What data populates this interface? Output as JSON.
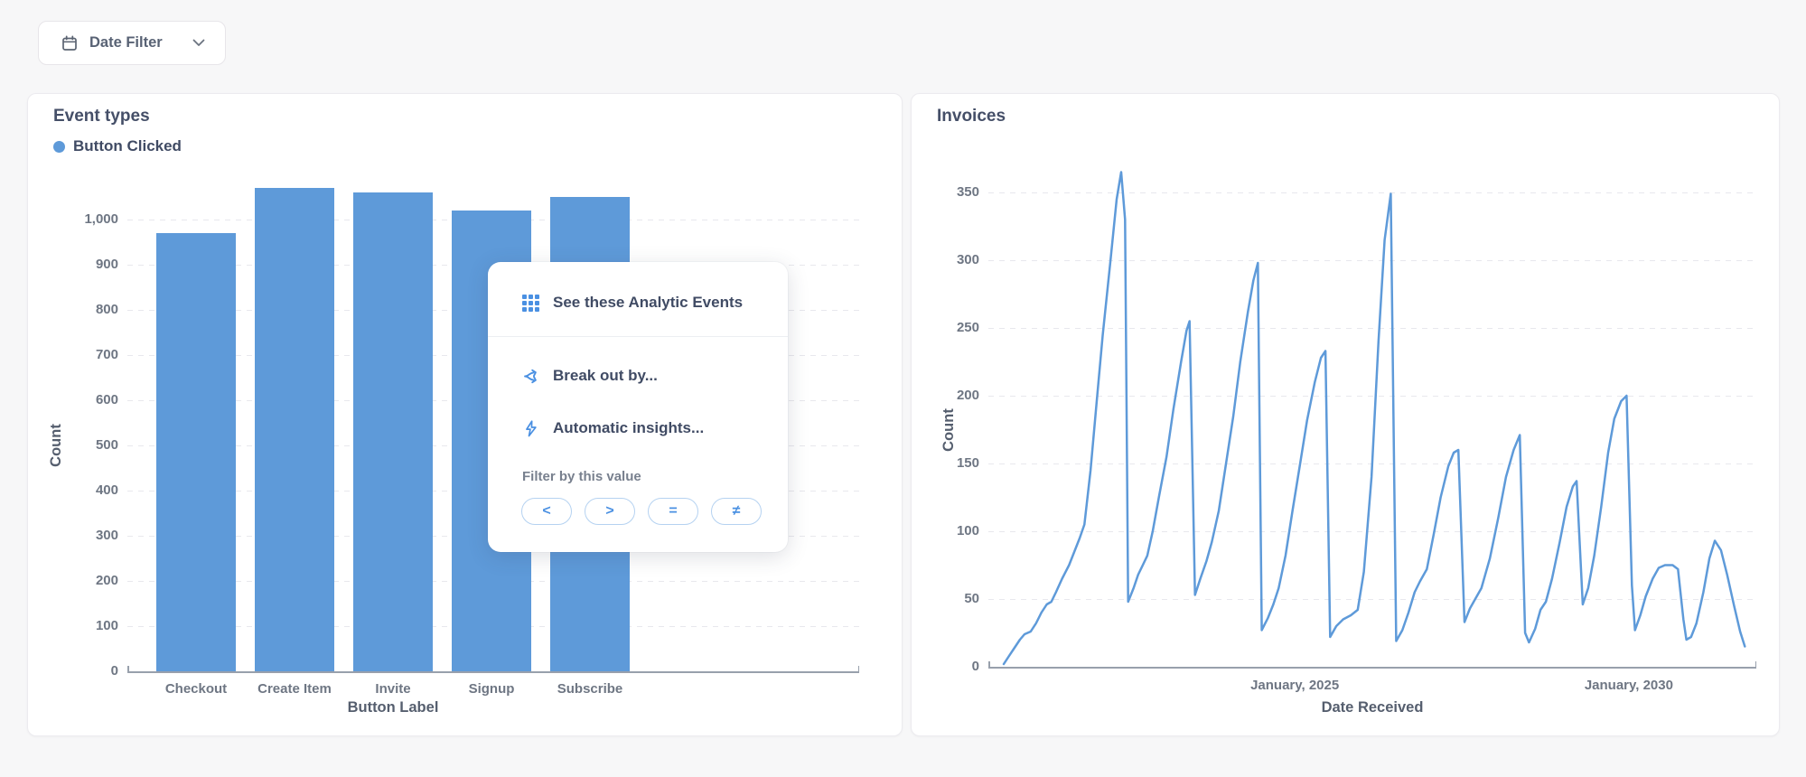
{
  "colors": {
    "accent_blue": "#5E9AD9",
    "icon_blue": "#4A90E2",
    "title_text": "#454F68",
    "tick_text": "#6E7683",
    "page_bg": "#F7F7F8",
    "card_bg": "#FFFFFF",
    "grid_line": "#E8E8ED",
    "axis_line": "#98A0AC"
  },
  "toolbar": {
    "date_filter": {
      "label": "Date Filter",
      "icon": "calendar-icon",
      "chevron": "chevron-down-icon"
    }
  },
  "context_menu": {
    "items": [
      {
        "icon": "grid-icon",
        "label": "See these Analytic Events"
      },
      {
        "icon": "breakout-icon",
        "label": "Break out by..."
      },
      {
        "icon": "lightning-icon",
        "label": "Automatic insights..."
      }
    ],
    "filter_section": {
      "label": "Filter by this value",
      "operators": [
        "<",
        ">",
        "=",
        "≠"
      ]
    }
  },
  "chart_data": [
    {
      "type": "bar",
      "title": "Event types",
      "legend": [
        {
          "label": "Button Clicked",
          "color": "#5E9AD9"
        }
      ],
      "legend_position": "top-left",
      "categories": [
        "Checkout",
        "Create Item",
        "Invite",
        "Signup",
        "Subscribe"
      ],
      "values": [
        970,
        1070,
        1060,
        1020,
        1050
      ],
      "series_name": "Button Clicked",
      "xlabel": "Button Label",
      "ylabel": "Count",
      "ylim": [
        0,
        1075
      ],
      "y_tick_values": [
        0,
        100,
        200,
        300,
        400,
        500,
        600,
        700,
        800,
        900,
        1000
      ],
      "y_tick_labels": [
        "0",
        "100",
        "200",
        "300",
        "400",
        "500",
        "600",
        "700",
        "800",
        "900",
        "1,000"
      ],
      "grid": "horizontal-dashed",
      "bar_color": "#5E9AD9"
    },
    {
      "type": "line",
      "title": "Invoices",
      "xlabel": "Date Received",
      "ylabel": "Count",
      "ylim": [
        0,
        395
      ],
      "y_tick_values": [
        0,
        50,
        100,
        150,
        200,
        250,
        300,
        350
      ],
      "y_tick_labels": [
        "0",
        "50",
        "100",
        "150",
        "200",
        "250",
        "300",
        "350"
      ],
      "grid": "horizontal-dashed",
      "line_color": "#5E9AD9",
      "x_ticks": [
        {
          "label": "January, 2025",
          "pos": 0.399
        },
        {
          "label": "January, 2030",
          "pos": 0.834
        }
      ],
      "points": [
        [
          0.02,
          2
        ],
        [
          0.027,
          8
        ],
        [
          0.034,
          14
        ],
        [
          0.041,
          20
        ],
        [
          0.047,
          24
        ],
        [
          0.055,
          26
        ],
        [
          0.062,
          32
        ],
        [
          0.069,
          40
        ],
        [
          0.076,
          46
        ],
        [
          0.082,
          48
        ],
        [
          0.088,
          55
        ],
        [
          0.096,
          65
        ],
        [
          0.105,
          75
        ],
        [
          0.112,
          85
        ],
        [
          0.119,
          95
        ],
        [
          0.125,
          105
        ],
        [
          0.133,
          145
        ],
        [
          0.141,
          195
        ],
        [
          0.149,
          245
        ],
        [
          0.159,
          300
        ],
        [
          0.167,
          345
        ],
        [
          0.173,
          365
        ],
        [
          0.178,
          330
        ],
        [
          0.182,
          48
        ],
        [
          0.189,
          58
        ],
        [
          0.195,
          68
        ],
        [
          0.201,
          75
        ],
        [
          0.207,
          82
        ],
        [
          0.214,
          100
        ],
        [
          0.222,
          125
        ],
        [
          0.232,
          155
        ],
        [
          0.241,
          190
        ],
        [
          0.251,
          225
        ],
        [
          0.258,
          248
        ],
        [
          0.262,
          255
        ],
        [
          0.269,
          53
        ],
        [
          0.276,
          65
        ],
        [
          0.284,
          78
        ],
        [
          0.291,
          92
        ],
        [
          0.3,
          115
        ],
        [
          0.309,
          148
        ],
        [
          0.319,
          185
        ],
        [
          0.328,
          225
        ],
        [
          0.338,
          262
        ],
        [
          0.345,
          285
        ],
        [
          0.351,
          298
        ],
        [
          0.356,
          27
        ],
        [
          0.364,
          36
        ],
        [
          0.371,
          46
        ],
        [
          0.378,
          58
        ],
        [
          0.387,
          82
        ],
        [
          0.396,
          115
        ],
        [
          0.406,
          150
        ],
        [
          0.415,
          182
        ],
        [
          0.425,
          210
        ],
        [
          0.433,
          228
        ],
        [
          0.439,
          233
        ],
        [
          0.445,
          22
        ],
        [
          0.453,
          30
        ],
        [
          0.462,
          35
        ],
        [
          0.472,
          38
        ],
        [
          0.481,
          42
        ],
        [
          0.489,
          70
        ],
        [
          0.499,
          140
        ],
        [
          0.508,
          240
        ],
        [
          0.516,
          315
        ],
        [
          0.524,
          349
        ],
        [
          0.531,
          19
        ],
        [
          0.539,
          27
        ],
        [
          0.547,
          40
        ],
        [
          0.555,
          55
        ],
        [
          0.562,
          63
        ],
        [
          0.571,
          72
        ],
        [
          0.58,
          98
        ],
        [
          0.589,
          125
        ],
        [
          0.599,
          148
        ],
        [
          0.606,
          158
        ],
        [
          0.612,
          160
        ],
        [
          0.62,
          33
        ],
        [
          0.627,
          43
        ],
        [
          0.634,
          50
        ],
        [
          0.642,
          58
        ],
        [
          0.653,
          80
        ],
        [
          0.664,
          110
        ],
        [
          0.674,
          140
        ],
        [
          0.684,
          160
        ],
        [
          0.692,
          171
        ],
        [
          0.699,
          25
        ],
        [
          0.704,
          18
        ],
        [
          0.712,
          28
        ],
        [
          0.719,
          42
        ],
        [
          0.726,
          48
        ],
        [
          0.734,
          65
        ],
        [
          0.744,
          92
        ],
        [
          0.753,
          118
        ],
        [
          0.761,
          133
        ],
        [
          0.766,
          137
        ],
        [
          0.774,
          46
        ],
        [
          0.781,
          58
        ],
        [
          0.789,
          82
        ],
        [
          0.798,
          118
        ],
        [
          0.807,
          158
        ],
        [
          0.815,
          183
        ],
        [
          0.824,
          196
        ],
        [
          0.831,
          200
        ],
        [
          0.838,
          60
        ],
        [
          0.842,
          27
        ],
        [
          0.849,
          38
        ],
        [
          0.856,
          52
        ],
        [
          0.865,
          65
        ],
        [
          0.873,
          73
        ],
        [
          0.881,
          75
        ],
        [
          0.891,
          75
        ],
        [
          0.898,
          72
        ],
        [
          0.905,
          35
        ],
        [
          0.909,
          20
        ],
        [
          0.915,
          22
        ],
        [
          0.922,
          32
        ],
        [
          0.931,
          55
        ],
        [
          0.939,
          80
        ],
        [
          0.946,
          93
        ],
        [
          0.954,
          86
        ],
        [
          0.962,
          68
        ],
        [
          0.971,
          45
        ],
        [
          0.979,
          26
        ],
        [
          0.985,
          15
        ]
      ]
    }
  ]
}
